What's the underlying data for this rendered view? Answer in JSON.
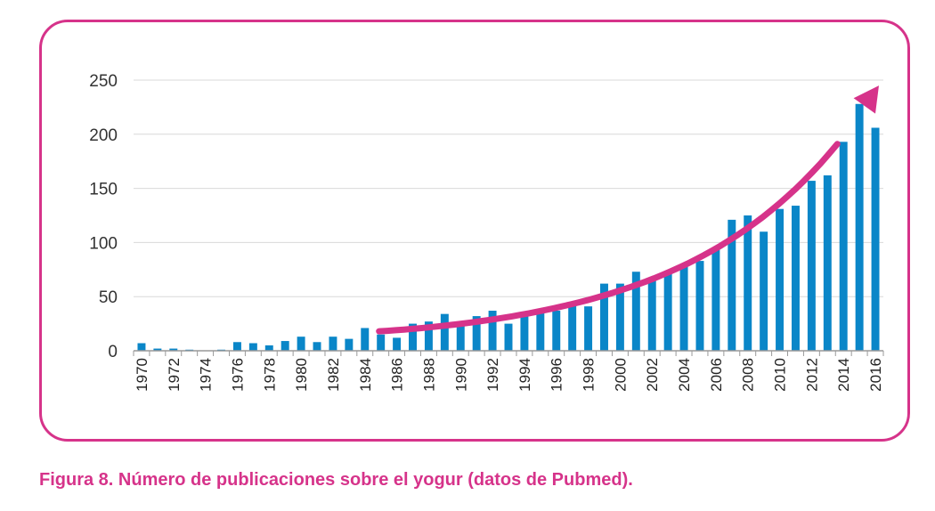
{
  "caption": "Figura 8. Número de publicaciones sobre el yogur (datos de Pubmed).",
  "colors": {
    "bar": "#0a86c8",
    "arrow": "#d6338a",
    "frame": "#d6338a",
    "grid": "#d9d9d9"
  },
  "chart_data": {
    "type": "bar",
    "title": "",
    "xlabel": "",
    "ylabel": "",
    "ylim": [
      0,
      250
    ],
    "yticks": [
      0,
      50,
      100,
      150,
      200,
      250
    ],
    "grid": true,
    "categories": [
      "1970",
      "1971",
      "1972",
      "1973",
      "1974",
      "1975",
      "1976",
      "1977",
      "1978",
      "1979",
      "1980",
      "1981",
      "1982",
      "1983",
      "1984",
      "1985",
      "1986",
      "1987",
      "1988",
      "1989",
      "1990",
      "1991",
      "1992",
      "1993",
      "1994",
      "1995",
      "1996",
      "1997",
      "1998",
      "1999",
      "2000",
      "2001",
      "2002",
      "2003",
      "2004",
      "2005",
      "2006",
      "2007",
      "2008",
      "2009",
      "2010",
      "2011",
      "2012",
      "2013",
      "2014",
      "2015",
      "2016"
    ],
    "xtick_labels": [
      "1970",
      "1972",
      "1974",
      "1976",
      "1978",
      "1980",
      "1982",
      "1984",
      "1986",
      "1988",
      "1990",
      "1992",
      "1994",
      "1996",
      "1998",
      "2000",
      "2002",
      "2004",
      "2006",
      "2008",
      "2010",
      "2012",
      "2014",
      "2016"
    ],
    "values": [
      7,
      2,
      2,
      1,
      0,
      1,
      8,
      7,
      5,
      9,
      13,
      8,
      13,
      11,
      21,
      15,
      12,
      25,
      27,
      34,
      27,
      32,
      37,
      25,
      33,
      37,
      37,
      44,
      41,
      62,
      62,
      73,
      66,
      72,
      80,
      83,
      95,
      121,
      125,
      110,
      131,
      134,
      157,
      162,
      193,
      228,
      206
    ],
    "trend_arrow": {
      "from_year": "1985",
      "to_year": "2016",
      "start_value": 18,
      "end_value": 245
    }
  }
}
